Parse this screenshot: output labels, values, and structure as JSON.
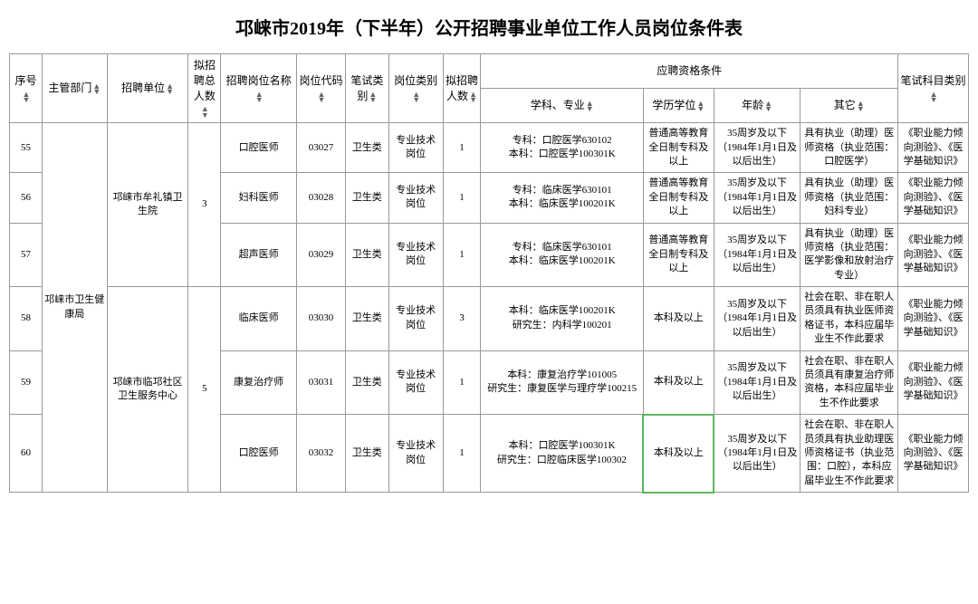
{
  "title": "邛崃市2019年（下半年）公开招聘事业单位工作人员岗位条件表",
  "headers": {
    "seq": "序号",
    "dept": "主管部门",
    "unit": "招聘单位",
    "total": "拟招聘总人数",
    "position": "招聘岗位名称",
    "code": "岗位代码",
    "examtype": "笔试类别",
    "postype": "岗位类别",
    "count": "拟招聘人数",
    "conditions": "应聘资格条件",
    "subject": "学科、专业",
    "edu": "学历学位",
    "age": "年龄",
    "other": "其它",
    "examsub": "笔试科目类别"
  },
  "dept_merged": "邛崃市卫生健康局",
  "unit1": "邛崃市牟礼镇卫生院",
  "unit1_total": "3",
  "unit2": "邛崃市临邛社区卫生服务中心",
  "unit2_total": "5",
  "rows": [
    {
      "seq": "55",
      "position": "口腔医师",
      "code": "03027",
      "examtype": "卫生类",
      "postype": "专业技术岗位",
      "count": "1",
      "subject": "专科：口腔医学630102\n本科：口腔医学100301K",
      "edu": "普通高等教育全日制专科及以上",
      "age": "35周岁及以下（1984年1月1日及以后出生）",
      "other": "具有执业（助理）医师资格（执业范围：口腔医学）",
      "examsub": "《职业能力倾向测验》、《医学基础知识》"
    },
    {
      "seq": "56",
      "position": "妇科医师",
      "code": "03028",
      "examtype": "卫生类",
      "postype": "专业技术岗位",
      "count": "1",
      "subject": "专科：临床医学630101\n本科：临床医学100201K",
      "edu": "普通高等教育全日制专科及以上",
      "age": "35周岁及以下（1984年1月1日及以后出生）",
      "other": "具有执业（助理）医师资格（执业范围：妇科专业）",
      "examsub": "《职业能力倾向测验》、《医学基础知识》"
    },
    {
      "seq": "57",
      "position": "超声医师",
      "code": "03029",
      "examtype": "卫生类",
      "postype": "专业技术岗位",
      "count": "1",
      "subject": "专科：临床医学630101\n本科：临床医学100201K",
      "edu": "普通高等教育全日制专科及以上",
      "age": "35周岁及以下（1984年1月1日及以后出生）",
      "other": "具有执业（助理）医师资格（执业范围：医学影像和放射治疗专业）",
      "examsub": "《职业能力倾向测验》、《医学基础知识》"
    },
    {
      "seq": "58",
      "position": "临床医师",
      "code": "03030",
      "examtype": "卫生类",
      "postype": "专业技术岗位",
      "count": "3",
      "subject": "本科：临床医学100201K\n研究生：内科学100201",
      "edu": "本科及以上",
      "age": "35周岁及以下（1984年1月1日及以后出生）",
      "other": "社会在职、非在职人员须具有执业医师资格证书，本科应届毕业生不作此要求",
      "examsub": "《职业能力倾向测验》、《医学基础知识》"
    },
    {
      "seq": "59",
      "position": "康复治疗师",
      "code": "03031",
      "examtype": "卫生类",
      "postype": "专业技术岗位",
      "count": "1",
      "subject": "本科：康复治疗学101005\n研究生：康复医学与理疗学100215",
      "edu": "本科及以上",
      "age": "35周岁及以下（1984年1月1日及以后出生）",
      "other": "社会在职、非在职人员须具有康复治疗师资格，本科应届毕业生不作此要求",
      "examsub": "《职业能力倾向测验》、《医学基础知识》"
    },
    {
      "seq": "60",
      "position": "口腔医师",
      "code": "03032",
      "examtype": "卫生类",
      "postype": "专业技术岗位",
      "count": "1",
      "subject": "本科：口腔医学100301K\n研究生：口腔临床医学100302",
      "edu": "本科及以上",
      "age": "35周岁及以下（1984年1月1日及以后出生）",
      "other": "社会在职、非在职人员须具有执业助理医师资格证书（执业范围：口腔），本科应届毕业生不作此要求",
      "examsub": "《职业能力倾向测验》、《医学基础知识》",
      "highlight_edu": true
    }
  ]
}
